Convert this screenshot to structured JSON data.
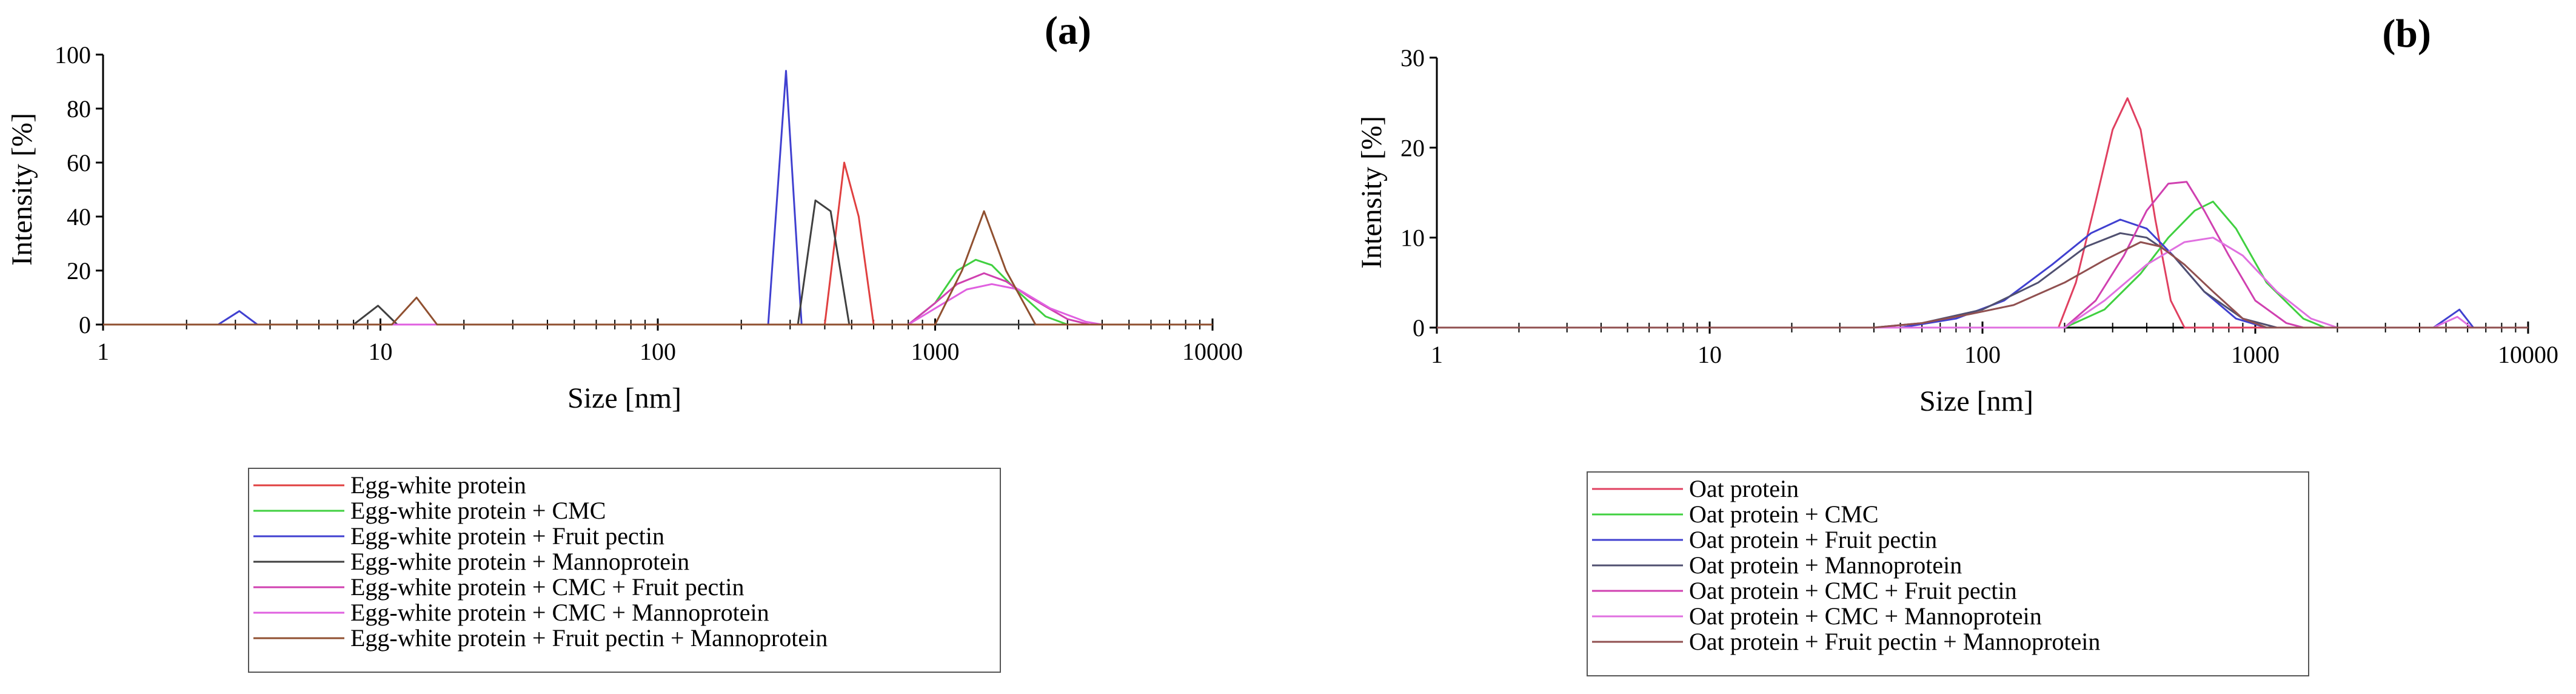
{
  "chart_data": [
    {
      "type": "line",
      "panel_label": "(a)",
      "xlabel": "Size [nm]",
      "ylabel": "Intensity [%]",
      "x_scale": "log",
      "xlim": [
        1,
        10000
      ],
      "ylim": [
        0,
        100
      ],
      "x_ticks": [
        1,
        10,
        100,
        1000,
        10000
      ],
      "x_tick_labels": [
        "1",
        "10",
        "100",
        "1000",
        "10000"
      ],
      "y_ticks": [
        0,
        20,
        40,
        60,
        80,
        100
      ],
      "y_tick_labels": [
        "0",
        "20",
        "40",
        "60",
        "80",
        "100"
      ],
      "legend_position": "below",
      "series": [
        {
          "name": "Egg-white protein",
          "color": "#e04040",
          "points": [
            [
              1,
              0
            ],
            [
              400,
              0
            ],
            [
              470,
              60
            ],
            [
              530,
              40
            ],
            [
              600,
              0
            ],
            [
              10000,
              0
            ]
          ]
        },
        {
          "name": "Egg-white protein + CMC",
          "color": "#40d040",
          "points": [
            [
              1,
              0
            ],
            [
              800,
              0
            ],
            [
              1000,
              8
            ],
            [
              1200,
              20
            ],
            [
              1400,
              24
            ],
            [
              1600,
              22
            ],
            [
              2000,
              12
            ],
            [
              2500,
              3
            ],
            [
              3000,
              0
            ],
            [
              10000,
              0
            ]
          ]
        },
        {
          "name": "Egg-white protein + Fruit pectin",
          "color": "#4040d0",
          "points": [
            [
              1,
              0
            ],
            [
              2.6,
              0
            ],
            [
              3.1,
              5
            ],
            [
              3.6,
              0
            ],
            [
              250,
              0
            ],
            [
              290,
              94
            ],
            [
              330,
              0
            ],
            [
              10000,
              0
            ]
          ]
        },
        {
          "name": "Egg-white protein + Mannoprotein",
          "color": "#404040",
          "points": [
            [
              1,
              0
            ],
            [
              8,
              0
            ],
            [
              9.8,
              7
            ],
            [
              11.5,
              0
            ],
            [
              320,
              0
            ],
            [
              370,
              46
            ],
            [
              420,
              42
            ],
            [
              490,
              0
            ],
            [
              10000,
              0
            ]
          ]
        },
        {
          "name": "Egg-white protein + CMC + Fruit pectin",
          "color": "#d040b0",
          "points": [
            [
              1,
              0
            ],
            [
              800,
              0
            ],
            [
              1000,
              8
            ],
            [
              1200,
              15
            ],
            [
              1500,
              19
            ],
            [
              1800,
              16
            ],
            [
              2200,
              10
            ],
            [
              3000,
              2
            ],
            [
              3600,
              0
            ],
            [
              10000,
              0
            ]
          ]
        },
        {
          "name": "Egg-white protein + CMC + Mannoprotein",
          "color": "#e060e0",
          "points": [
            [
              1,
              0
            ],
            [
              800,
              0
            ],
            [
              1000,
              6
            ],
            [
              1300,
              13
            ],
            [
              1600,
              15
            ],
            [
              2000,
              13
            ],
            [
              2600,
              6
            ],
            [
              3500,
              1
            ],
            [
              4000,
              0
            ],
            [
              10000,
              0
            ]
          ]
        },
        {
          "name": "Egg-white protein + Fruit pectin + Mannoprotein",
          "color": "#905030",
          "points": [
            [
              1,
              0
            ],
            [
              11,
              0
            ],
            [
              13.5,
              10
            ],
            [
              16,
              0
            ],
            [
              1000,
              0
            ],
            [
              1250,
              20
            ],
            [
              1500,
              42
            ],
            [
              1800,
              20
            ],
            [
              2300,
              0
            ],
            [
              10000,
              0
            ]
          ]
        }
      ]
    },
    {
      "type": "line",
      "panel_label": "(b)",
      "xlabel": "Size [nm]",
      "ylabel": "Intensity [%]",
      "x_scale": "log",
      "xlim": [
        1,
        10000
      ],
      "ylim": [
        0,
        30
      ],
      "x_ticks": [
        1,
        10,
        100,
        1000,
        10000
      ],
      "x_tick_labels": [
        "1",
        "10",
        "100",
        "1000",
        "10000"
      ],
      "y_ticks": [
        0,
        10,
        20,
        30
      ],
      "y_tick_labels": [
        "0",
        "10",
        "20",
        "30"
      ],
      "legend_position": "below",
      "series": [
        {
          "name": "Oat protein",
          "color": "#e04060",
          "points": [
            [
              1,
              0
            ],
            [
              190,
              0
            ],
            [
              220,
              5
            ],
            [
              260,
              14
            ],
            [
              300,
              22
            ],
            [
              340,
              25.5
            ],
            [
              380,
              22
            ],
            [
              430,
              12
            ],
            [
              490,
              3
            ],
            [
              550,
              0
            ],
            [
              10000,
              0
            ]
          ]
        },
        {
          "name": "Oat protein + CMC",
          "color": "#40d040",
          "points": [
            [
              1,
              0
            ],
            [
              200,
              0
            ],
            [
              280,
              2
            ],
            [
              380,
              6
            ],
            [
              480,
              10
            ],
            [
              600,
              13
            ],
            [
              700,
              14
            ],
            [
              850,
              11
            ],
            [
              1100,
              5
            ],
            [
              1500,
              1
            ],
            [
              1800,
              0
            ],
            [
              10000,
              0
            ]
          ]
        },
        {
          "name": "Oat protein + Fruit pectin",
          "color": "#4040d0",
          "points": [
            [
              1,
              0
            ],
            [
              50,
              0
            ],
            [
              80,
              1
            ],
            [
              120,
              3
            ],
            [
              180,
              7
            ],
            [
              250,
              10.5
            ],
            [
              320,
              12
            ],
            [
              400,
              11
            ],
            [
              500,
              8
            ],
            [
              650,
              4
            ],
            [
              850,
              1
            ],
            [
              1100,
              0
            ],
            [
              4500,
              0
            ],
            [
              5600,
              2
            ],
            [
              6300,
              0
            ],
            [
              10000,
              0
            ]
          ]
        },
        {
          "name": "Oat protein + Mannoprotein",
          "color": "#505070",
          "points": [
            [
              1,
              0
            ],
            [
              40,
              0
            ],
            [
              60,
              0.5
            ],
            [
              100,
              2
            ],
            [
              160,
              5
            ],
            [
              240,
              9
            ],
            [
              320,
              10.5
            ],
            [
              400,
              10
            ],
            [
              500,
              8
            ],
            [
              650,
              4
            ],
            [
              900,
              1
            ],
            [
              1200,
              0
            ],
            [
              10000,
              0
            ]
          ]
        },
        {
          "name": "Oat protein + CMC + Fruit pectin",
          "color": "#d040b0",
          "points": [
            [
              1,
              0
            ],
            [
              200,
              0
            ],
            [
              260,
              3
            ],
            [
              330,
              8
            ],
            [
              400,
              13
            ],
            [
              480,
              16
            ],
            [
              560,
              16.2
            ],
            [
              650,
              13
            ],
            [
              800,
              8
            ],
            [
              1000,
              3
            ],
            [
              1300,
              0.5
            ],
            [
              1500,
              0
            ],
            [
              10000,
              0
            ]
          ]
        },
        {
          "name": "Oat protein + CMC + Mannoprotein",
          "color": "#e070e0",
          "points": [
            [
              1,
              0
            ],
            [
              200,
              0
            ],
            [
              280,
              3
            ],
            [
              400,
              7
            ],
            [
              550,
              9.5
            ],
            [
              700,
              10
            ],
            [
              900,
              8
            ],
            [
              1200,
              4
            ],
            [
              1600,
              1
            ],
            [
              2000,
              0
            ],
            [
              4500,
              0
            ],
            [
              5500,
              1.2
            ],
            [
              6200,
              0
            ],
            [
              10000,
              0
            ]
          ]
        },
        {
          "name": "Oat protein + Fruit pectin + Mannoprotein",
          "color": "#905050",
          "points": [
            [
              1,
              0
            ],
            [
              40,
              0
            ],
            [
              60,
              0.5
            ],
            [
              90,
              1.5
            ],
            [
              130,
              2.5
            ],
            [
              200,
              5
            ],
            [
              280,
              7.5
            ],
            [
              380,
              9.5
            ],
            [
              450,
              9
            ],
            [
              550,
              7
            ],
            [
              700,
              4
            ],
            [
              900,
              1
            ],
            [
              1100,
              0
            ],
            [
              10000,
              0
            ]
          ]
        }
      ]
    }
  ]
}
